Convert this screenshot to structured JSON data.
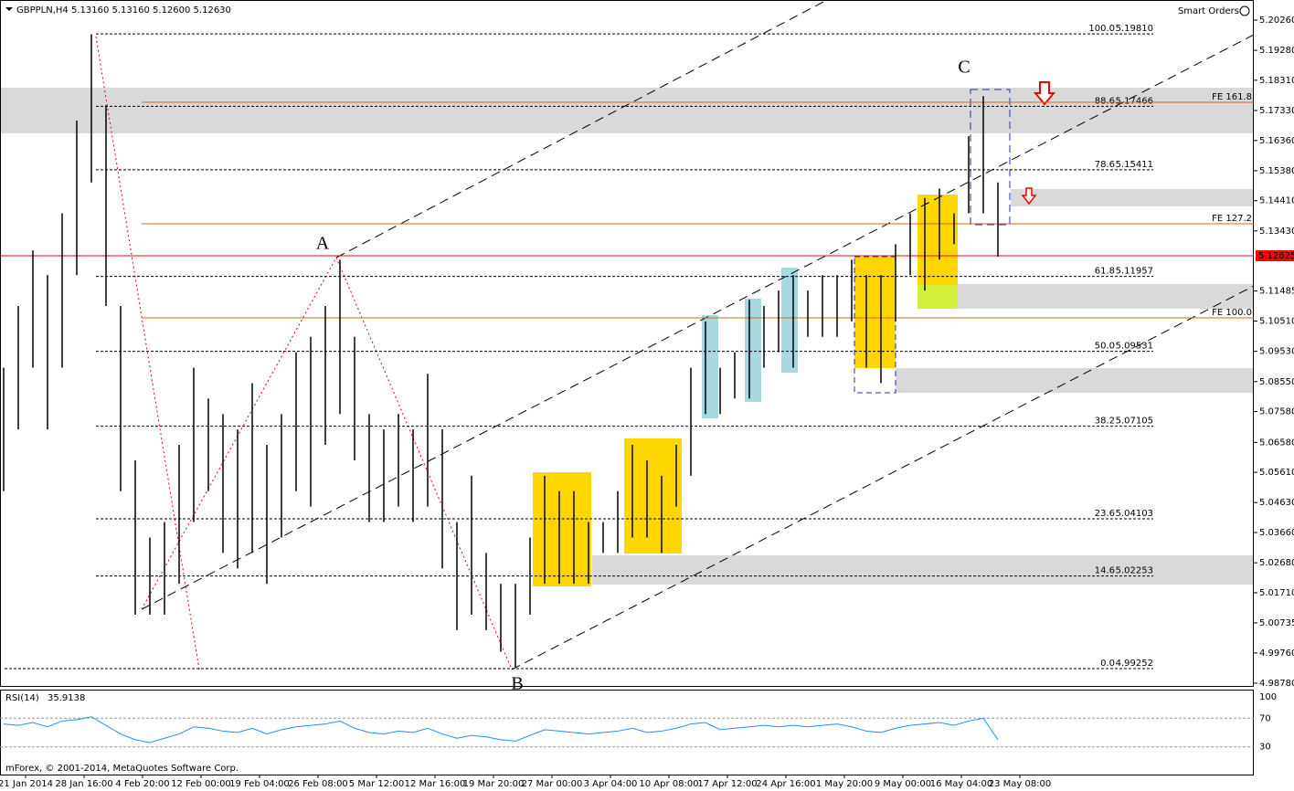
{
  "chart_data": {
    "type": "ohlc",
    "title": "GBPPLN,H4  5.13160 5.13160 5.12600 5.12630",
    "badge": "Smart Orders",
    "color": "#000000",
    "high": [
      5.09,
      5.11,
      5.128,
      5.12,
      5.14,
      5.17,
      5.198,
      5.175,
      5.11,
      5.06,
      5.035,
      5.04,
      5.065,
      5.09,
      5.08,
      5.075,
      5.07,
      5.085,
      5.065,
      5.075,
      5.095,
      5.1,
      5.11,
      5.125,
      5.1,
      5.075,
      5.07,
      5.075,
      5.07,
      5.088,
      5.07,
      5.04,
      5.055,
      5.03,
      5.02,
      5.02,
      5.035,
      5.055,
      5.05,
      5.05,
      5.04,
      5.04,
      5.05,
      5.065,
      5.06,
      5.055,
      5.065,
      5.09,
      5.105,
      5.09,
      5.095,
      5.112,
      5.11,
      5.115,
      5.12,
      5.115,
      5.12,
      5.12,
      5.125,
      5.12,
      5.12,
      5.13,
      5.14,
      5.145,
      5.148,
      5.14,
      5.165,
      5.178,
      5.15
    ],
    "low": [
      5.05,
      5.07,
      5.09,
      5.07,
      5.09,
      5.12,
      5.15,
      5.11,
      5.05,
      5.01,
      5.01,
      5.01,
      5.02,
      5.04,
      5.05,
      5.03,
      5.025,
      5.03,
      5.02,
      5.035,
      5.05,
      5.045,
      5.065,
      5.075,
      5.06,
      5.04,
      5.04,
      5.045,
      5.04,
      5.045,
      5.025,
      5.005,
      5.01,
      5.005,
      4.998,
      4.993,
      5.01,
      5.02,
      5.02,
      5.02,
      5.02,
      5.03,
      5.03,
      5.035,
      5.035,
      5.03,
      5.045,
      5.055,
      5.075,
      5.075,
      5.08,
      5.08,
      5.09,
      5.095,
      5.09,
      5.1,
      5.1,
      5.1,
      5.105,
      5.09,
      5.085,
      5.105,
      5.12,
      5.115,
      5.125,
      5.13,
      5.14,
      5.14,
      5.126
    ],
    "xlim": [
      -0.25,
      85.5
    ],
    "xticks": [
      {
        "value": 1.5,
        "label": "21 Jan 2014"
      },
      {
        "value": 5.5,
        "label": "28 Jan 16:00"
      },
      {
        "value": 9.5,
        "label": "4 Feb 20:00"
      },
      {
        "value": 13.5,
        "label": "12 Feb 00:00"
      },
      {
        "value": 17.5,
        "label": "19 Feb 04:00"
      },
      {
        "value": 21.5,
        "label": "26 Feb 08:00"
      },
      {
        "value": 25.5,
        "label": "5 Mar 12:00"
      },
      {
        "value": 29.5,
        "label": "12 Mar 16:00"
      },
      {
        "value": 33.5,
        "label": "19 Mar 20:00"
      },
      {
        "value": 37.5,
        "label": "27 Mar 00:00"
      },
      {
        "value": 41.5,
        "label": "3 Apr 04:00"
      },
      {
        "value": 45.5,
        "label": "10 Apr 08:00"
      },
      {
        "value": 49.5,
        "label": "17 Apr 12:00"
      },
      {
        "value": 53.5,
        "label": "24 Apr 16:00"
      },
      {
        "value": 57.5,
        "label": "1 May 20:00"
      },
      {
        "value": 61.5,
        "label": "9 May 00:00"
      },
      {
        "value": 65.5,
        "label": "16 May 04:00"
      },
      {
        "value": 69.5,
        "label": "23 May 08:00"
      }
    ],
    "ylim": [
      4.9872,
      5.2091
    ],
    "yticks": [
      {
        "value": 5.2026,
        "label": "5.20260"
      },
      {
        "value": 5.1928,
        "label": "5.19280"
      },
      {
        "value": 5.1831,
        "label": "5.18310"
      },
      {
        "value": 5.1733,
        "label": "5.17330"
      },
      {
        "value": 5.1636,
        "label": "5.16360"
      },
      {
        "value": 5.1538,
        "label": "5.15380"
      },
      {
        "value": 5.1441,
        "label": "5.14410"
      },
      {
        "value": 5.1343,
        "label": "5.13430"
      },
      5.11485,
      {
        "value": 5.1051,
        "label": "5.10510"
      },
      {
        "value": 5.0953,
        "label": "5.09530"
      },
      {
        "value": 5.0855,
        "label": "5.08550"
      },
      {
        "value": 5.0758,
        "label": "5.07580"
      },
      {
        "value": 5.0658,
        "label": "5.06580"
      },
      {
        "value": 5.0561,
        "label": "5.05610"
      },
      {
        "value": 5.0463,
        "label": "5.04630"
      },
      {
        "value": 5.0366,
        "label": "5.03660"
      },
      {
        "value": 5.0268,
        "label": "5.02680"
      },
      {
        "value": 5.0171,
        "label": "5.01710"
      },
      5.00735,
      {
        "value": 4.9976,
        "label": "4.99760"
      },
      {
        "value": 4.9878,
        "label": "4.98780"
      }
    ],
    "current_price": {
      "value": 5.12625,
      "label": "5.12625",
      "color": "#ff0000"
    },
    "fib_levels": [
      {
        "ratio": "100.0",
        "value": 5.1981,
        "label": "5.19810"
      },
      {
        "ratio": "88.6",
        "value": 5.17466,
        "label": "5.17466"
      },
      {
        "ratio": "78.6",
        "value": 5.15411,
        "label": "5.15411"
      },
      {
        "ratio": "61.8",
        "value": 5.11957,
        "label": "5.11957"
      },
      {
        "ratio": "50.0",
        "value": 5.09531,
        "label": "5.09531"
      },
      {
        "ratio": "38.2",
        "value": 5.07105,
        "label": "5.07105"
      },
      {
        "ratio": "23.6",
        "value": 5.04103,
        "label": "5.04103"
      },
      {
        "ratio": "14.6",
        "value": 5.02253,
        "label": "5.02253"
      },
      {
        "ratio": "0.0",
        "value": 4.99252,
        "label": "4.99252"
      }
    ],
    "fe_color": "#d2691e",
    "fe_levels": [
      {
        "text": "FE 161.8",
        "value": 5.17597
      },
      {
        "text": "FE 127.2",
        "value": 5.13662
      },
      {
        "text": "FE 100.0",
        "value": 5.10615
      }
    ],
    "wave_labels": [
      "A",
      "B",
      "C"
    ],
    "rsi": {
      "name": "RSI(14)",
      "value": 35.9138,
      "color": "#1e90ff",
      "values": [
        62,
        60,
        64,
        58,
        66,
        68,
        72,
        60,
        48,
        40,
        36,
        42,
        48,
        58,
        56,
        52,
        50,
        56,
        48,
        54,
        58,
        60,
        62,
        66,
        56,
        50,
        48,
        52,
        50,
        56,
        48,
        42,
        46,
        44,
        40,
        38,
        46,
        54,
        52,
        50,
        48,
        50,
        52,
        56,
        50,
        52,
        56,
        62,
        64,
        54,
        56,
        58,
        60,
        58,
        60,
        58,
        60,
        62,
        58,
        52,
        50,
        56,
        60,
        62,
        64,
        60,
        66,
        70,
        40
      ],
      "ylim": [
        -8.6,
        108.6
      ],
      "yticks": [
        100,
        70,
        30
      ]
    },
    "footer": "mForex, © 2001-2014, MetaQuotes Software Corp."
  }
}
